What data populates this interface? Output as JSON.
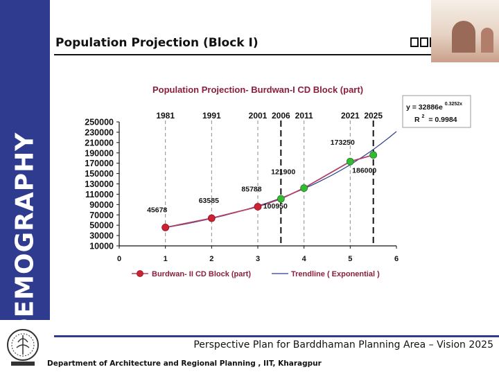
{
  "slide": {
    "side_word": "DEMOGRAPHY",
    "title": "Population Projection (Block I)",
    "title_glyphs": "□□□",
    "footer_text": "Perspective Plan for Barddhaman Planning Area – Vision 2025",
    "footer_dept": "Department of Architecture and Regional Planning , IIT, Kharagpur"
  },
  "colors": {
    "sidebar": "#2e3b8f",
    "series_line": "#b0406a",
    "series_marker": "#cc2233",
    "projection_marker": "#33bb33",
    "trendline": "#2a3a8a",
    "title_text": "#8a1e3c"
  },
  "chart_data": {
    "type": "line",
    "title": "Population Projection- Burdwan-I CD Block (part)",
    "xlim": [
      0,
      6
    ],
    "ylim": [
      10000,
      250000
    ],
    "x_ticks": [
      0,
      1,
      2,
      3,
      4,
      5,
      6
    ],
    "y_ticks": [
      10000,
      30000,
      50000,
      70000,
      90000,
      110000,
      130000,
      150000,
      170000,
      190000,
      210000,
      230000,
      250000
    ],
    "grid": false,
    "year_labels": [
      {
        "x": 1,
        "label": "1981"
      },
      {
        "x": 2,
        "label": "1991"
      },
      {
        "x": 3,
        "label": "2001"
      },
      {
        "x": 3.5,
        "label": "2006"
      },
      {
        "x": 4,
        "label": "2011"
      },
      {
        "x": 5,
        "label": "2021"
      },
      {
        "x": 5.5,
        "label": "2025"
      }
    ],
    "series": [
      {
        "name": "Burdwan- II CD Block (part)",
        "points": [
          {
            "x": 1,
            "y": 45678,
            "label": "45678",
            "kind": "census"
          },
          {
            "x": 2,
            "y": 63585,
            "label": "63585",
            "kind": "census"
          },
          {
            "x": 3,
            "y": 85788,
            "label": "85788",
            "kind": "census"
          },
          {
            "x": 3.5,
            "y": 100950,
            "label": "100950",
            "kind": "projection"
          },
          {
            "x": 4,
            "y": 121900,
            "label": "121900",
            "kind": "projection"
          },
          {
            "x": 5,
            "y": 173250,
            "label": "173250",
            "kind": "projection"
          },
          {
            "x": 5.5,
            "y": 186000,
            "label": "186000",
            "kind": "projection"
          }
        ]
      },
      {
        "name": "Trendline ( Exponential )",
        "type": "trendline",
        "equation": "y = 32886e",
        "exponent": "0.3252x",
        "r_squared_label": "R",
        "r_squared_power": "2",
        "r_squared_value": "= 0.9984",
        "a": 32886,
        "b": 0.3252
      }
    ],
    "legend_position": "bottom"
  }
}
